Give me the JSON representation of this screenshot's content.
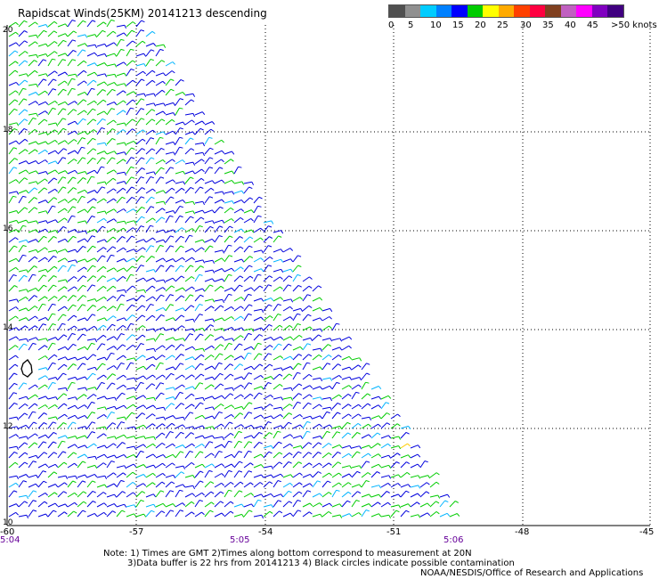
{
  "title": "Rapidscat Winds(25KM) 20141213 descending",
  "legend": {
    "colors": [
      "#505050",
      "#909090",
      "#00ccff",
      "#0080ff",
      "#0000ff",
      "#00cc00",
      "#ffff00",
      "#ffaa00",
      "#ff4000",
      "#ff0040",
      "#804020",
      "#c060c0",
      "#ff00ff",
      "#8000c0",
      "#400080"
    ],
    "labels": [
      "0",
      "5",
      "10",
      "15",
      "20",
      "25",
      "30",
      "35",
      "40",
      "45",
      ">50 knots"
    ]
  },
  "map": {
    "lat_labels": [
      "20",
      "18",
      "16",
      "14",
      "12",
      "10"
    ],
    "lon_labels": [
      "-60",
      "-57",
      "-54",
      "-51",
      "-48",
      "-45"
    ],
    "time_labels": [
      "5:04",
      "5:05",
      "5:06"
    ],
    "wind_colors": {
      "low": "#00b4ff",
      "medium": "#0000dd",
      "high": "#00cc00",
      "very_high": "#ffcc00",
      "coast": "#000000"
    }
  },
  "notes": {
    "line1": "Note: 1) Times are GMT 2)Times along bottom correspond to measurement at 20N",
    "line2": "3)Data buffer is 22 hrs from 20141213 4) Black circles indicate possible contamination",
    "credit": "NOAA/NESDIS/Office of Research and Applications"
  }
}
